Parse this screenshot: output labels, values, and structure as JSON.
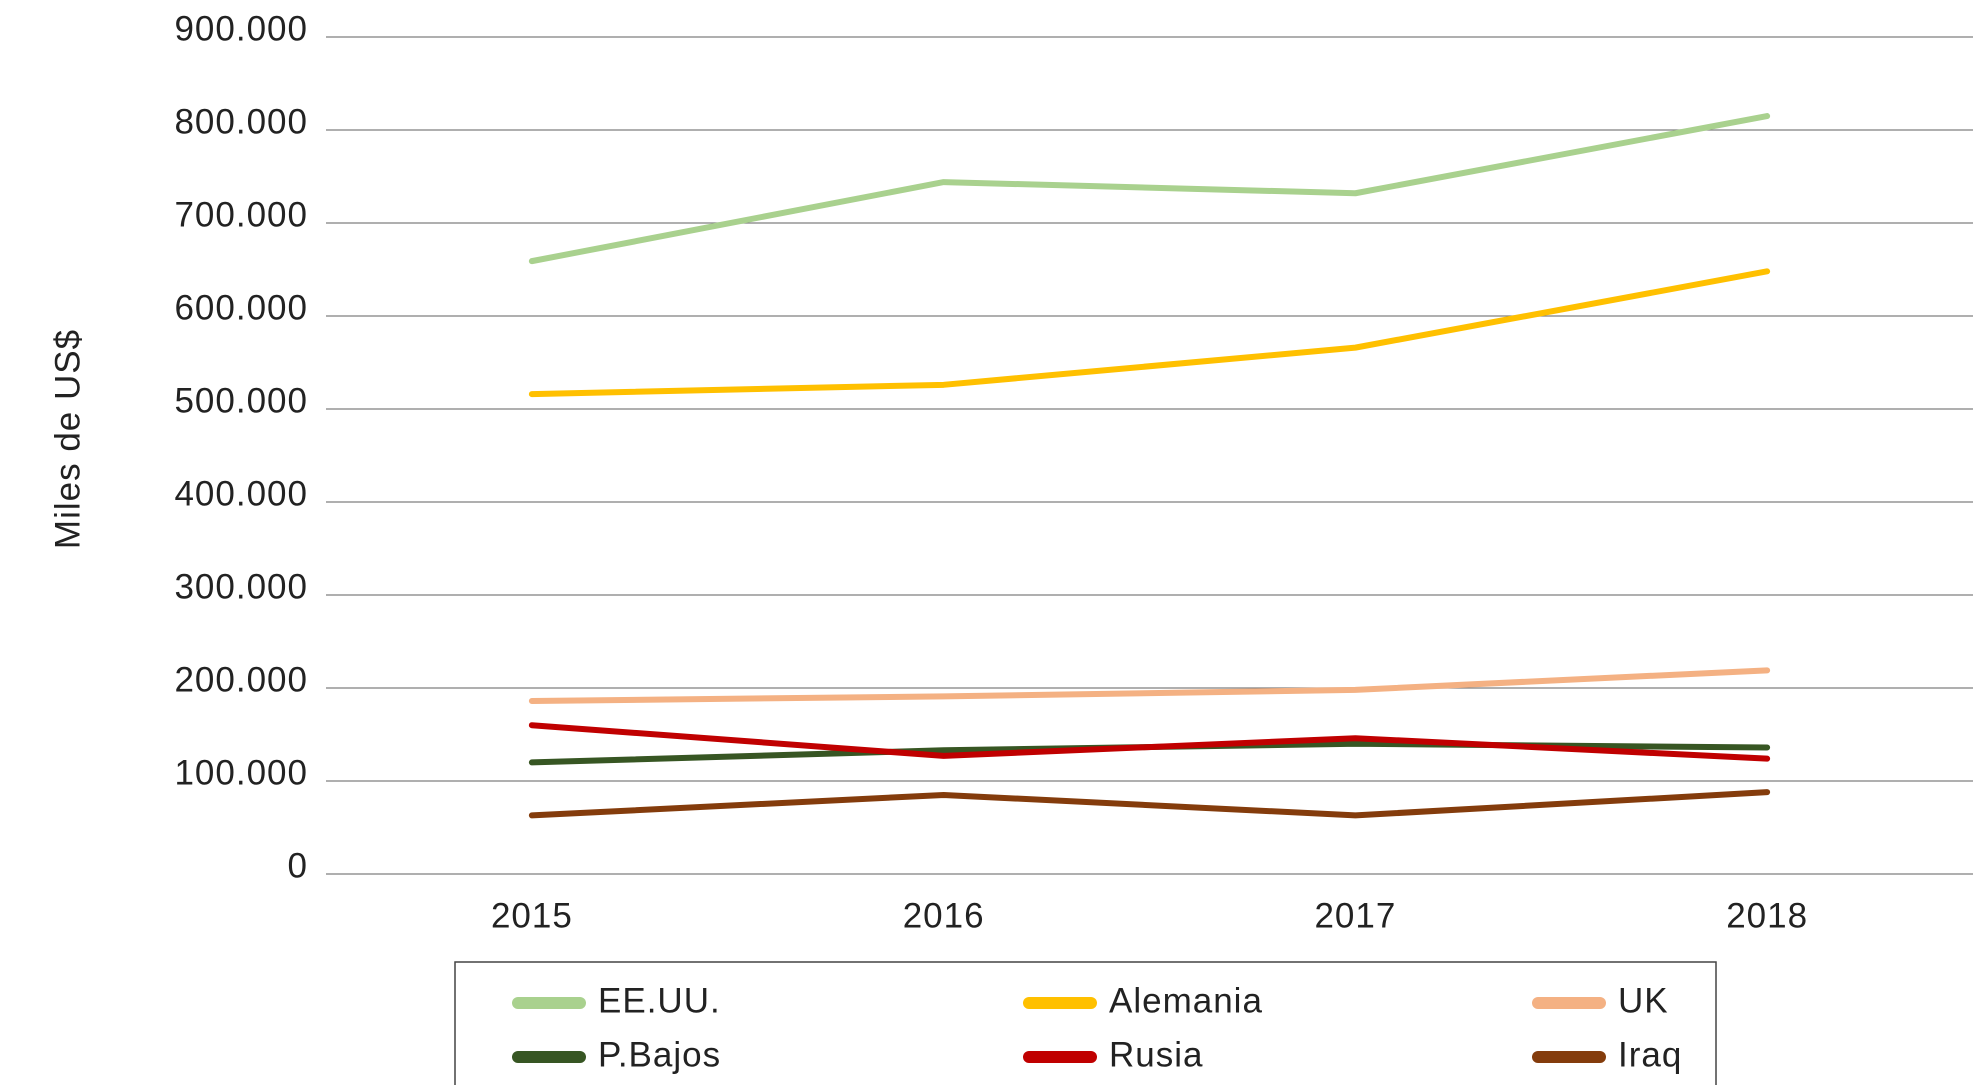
{
  "chart_data": {
    "type": "line",
    "y_label": "Miles de US$",
    "categories": [
      "2015",
      "2016",
      "2017",
      "2018"
    ],
    "series": [
      {
        "name": "EE.UU.",
        "color": "#a9d18e",
        "values": [
          659000,
          744000,
          732000,
          815000
        ]
      },
      {
        "name": "Alemania",
        "color": "#ffc000",
        "values": [
          516000,
          526000,
          566000,
          648000
        ]
      },
      {
        "name": "UK",
        "color": "#f4b183",
        "values": [
          186000,
          191000,
          198000,
          219000
        ]
      },
      {
        "name": "P.Bajos",
        "color": "#375623",
        "values": [
          120000,
          133000,
          140000,
          136000
        ]
      },
      {
        "name": "Rusia",
        "color": "#c00000",
        "values": [
          160000,
          127000,
          146000,
          124000
        ]
      },
      {
        "name": "Iraq",
        "color": "#843c0c",
        "values": [
          63000,
          85000,
          63000,
          88000
        ]
      }
    ],
    "ylim": [
      0,
      900000
    ],
    "yticks": [
      0,
      {
        "value": 100000,
        "label": "100.000"
      },
      {
        "value": 200000,
        "label": "200.000"
      },
      {
        "value": 300000,
        "label": "300.000"
      },
      {
        "value": 400000,
        "label": "400.000"
      },
      {
        "value": 500000,
        "label": "500.000"
      },
      {
        "value": 600000,
        "label": "600.000"
      },
      {
        "value": 700000,
        "label": "700.000"
      },
      {
        "value": 800000,
        "label": "800.000"
      },
      {
        "value": 900000,
        "label": "900.000"
      }
    ],
    "grid": true,
    "legend": "bottom"
  }
}
